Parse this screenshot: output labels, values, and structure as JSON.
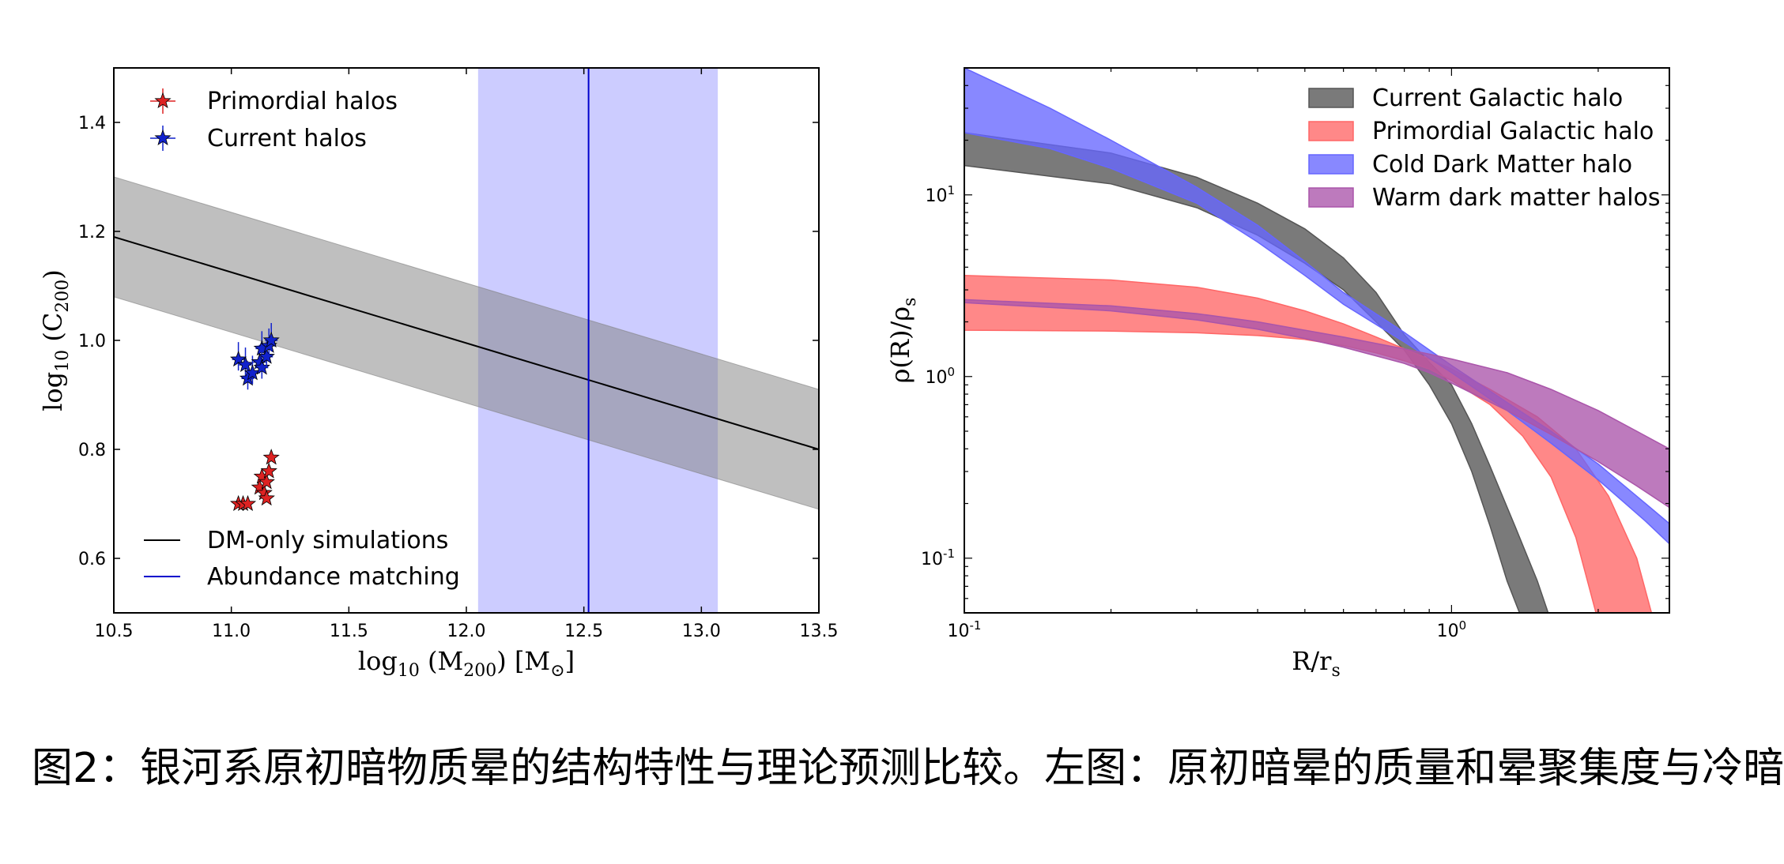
{
  "chart_data": [
    {
      "type": "scatter",
      "xlabel": "log10 (M200) [M⊙]",
      "ylabel": "log10 (C200)",
      "xlim": [
        10.5,
        13.5
      ],
      "ylim": [
        0.5,
        1.5
      ],
      "xticks": [
        "10.5",
        "11.0",
        "11.5",
        "12.0",
        "12.5",
        "13.0",
        "13.5"
      ],
      "yticks": [
        "0.6",
        "0.8",
        "1.0",
        "1.2",
        "1.4"
      ],
      "legend_top": {
        "position": "top-left",
        "entries": [
          "Primordial halos",
          "Current halos"
        ]
      },
      "legend_bottom": {
        "position": "bottom-left",
        "entries": [
          "DM-only simulations",
          "Abundance matching"
        ]
      },
      "dm_only_relation": {
        "x": [
          10.5,
          13.5
        ],
        "y": [
          1.19,
          0.8
        ],
        "band_half_width": 0.11,
        "color": "#000000",
        "band_color": "#bebebe"
      },
      "abundance_matching": {
        "x": 12.52,
        "range": [
          12.05,
          13.07
        ],
        "color": "#0000cc",
        "band_color": "#ccccff"
      },
      "series": [
        {
          "name": "Primordial halos",
          "color": "#dd2222",
          "points": [
            [
              11.03,
              0.7
            ],
            [
              11.05,
              0.7
            ],
            [
              11.07,
              0.7
            ],
            [
              11.12,
              0.73
            ],
            [
              11.13,
              0.75
            ],
            [
              11.14,
              0.72
            ],
            [
              11.15,
              0.74
            ],
            [
              11.16,
              0.76
            ],
            [
              11.15,
              0.71
            ],
            [
              11.17,
              0.785
            ]
          ]
        },
        {
          "name": "Current halos",
          "color": "#1122cc",
          "points": [
            [
              11.03,
              0.965
            ],
            [
              11.06,
              0.955
            ],
            [
              11.07,
              0.93
            ],
            [
              11.09,
              0.94
            ],
            [
              11.12,
              0.96
            ],
            [
              11.13,
              0.985
            ],
            [
              11.13,
              0.95
            ],
            [
              11.15,
              0.97
            ],
            [
              11.16,
              0.99
            ],
            [
              11.17,
              1.0
            ]
          ]
        }
      ]
    },
    {
      "type": "area",
      "xlabel": "R/rs",
      "ylabel": "ρ(R)/ρs",
      "log_x": true,
      "log_y": true,
      "xlim": [
        0.1,
        2.8
      ],
      "ylim": [
        0.05,
        50
      ],
      "xticks": [
        {
          "value": 0.1,
          "base": "10",
          "exp": "-1"
        },
        {
          "value": 1,
          "base": "10",
          "exp": "0"
        }
      ],
      "yticks": [
        {
          "value": 0.1,
          "base": "10",
          "exp": "-1"
        },
        {
          "value": 1,
          "base": "10",
          "exp": "0"
        },
        {
          "value": 10,
          "base": "10",
          "exp": "1"
        }
      ],
      "legend": {
        "position": "top-right"
      },
      "series": [
        {
          "name": "Current Galactic halo",
          "color": "#555555",
          "lower": [
            [
              0.1,
              14.5
            ],
            [
              0.2,
              11.5
            ],
            [
              0.3,
              8.5
            ],
            [
              0.4,
              6.0
            ],
            [
              0.5,
              4.2
            ],
            [
              0.6,
              3.0
            ],
            [
              0.7,
              2.0
            ],
            [
              0.8,
              1.4
            ],
            [
              0.9,
              0.9
            ],
            [
              1.0,
              0.55
            ],
            [
              1.1,
              0.3
            ],
            [
              1.2,
              0.15
            ],
            [
              1.3,
              0.075
            ],
            [
              1.4,
              0.045
            ]
          ],
          "upper": [
            [
              0.1,
              22
            ],
            [
              0.2,
              17
            ],
            [
              0.3,
              12.5
            ],
            [
              0.4,
              9.0
            ],
            [
              0.5,
              6.5
            ],
            [
              0.6,
              4.5
            ],
            [
              0.7,
              2.9
            ],
            [
              0.8,
              1.7
            ],
            [
              0.9,
              1.2
            ],
            [
              1.0,
              0.9
            ],
            [
              1.1,
              0.55
            ],
            [
              1.2,
              0.32
            ],
            [
              1.35,
              0.15
            ],
            [
              1.5,
              0.075
            ],
            [
              1.6,
              0.045
            ]
          ]
        },
        {
          "name": "Primordial Galactic halo",
          "color": "#ff6666",
          "lower": [
            [
              0.1,
              1.8
            ],
            [
              0.2,
              1.78
            ],
            [
              0.3,
              1.74
            ],
            [
              0.4,
              1.68
            ],
            [
              0.5,
              1.6
            ],
            [
              0.6,
              1.48
            ],
            [
              0.7,
              1.35
            ],
            [
              0.8,
              1.22
            ],
            [
              0.9,
              1.1
            ],
            [
              1.0,
              0.95
            ],
            [
              1.2,
              0.7
            ],
            [
              1.4,
              0.47
            ],
            [
              1.6,
              0.28
            ],
            [
              1.8,
              0.13
            ],
            [
              2.0,
              0.045
            ]
          ],
          "upper": [
            [
              0.1,
              3.6
            ],
            [
              0.2,
              3.4
            ],
            [
              0.3,
              3.1
            ],
            [
              0.4,
              2.7
            ],
            [
              0.5,
              2.3
            ],
            [
              0.6,
              1.95
            ],
            [
              0.7,
              1.65
            ],
            [
              0.8,
              1.42
            ],
            [
              0.9,
              1.25
            ],
            [
              1.0,
              1.1
            ],
            [
              1.2,
              0.85
            ],
            [
              1.5,
              0.6
            ],
            [
              1.8,
              0.4
            ],
            [
              2.1,
              0.22
            ],
            [
              2.4,
              0.1
            ],
            [
              2.6,
              0.045
            ]
          ]
        },
        {
          "name": "Cold Dark Matter halo",
          "color": "#6666ff",
          "lower": [
            [
              0.1,
              22
            ],
            [
              0.15,
              18
            ],
            [
              0.2,
              14
            ],
            [
              0.3,
              9.0
            ],
            [
              0.4,
              5.5
            ],
            [
              0.5,
              3.6
            ],
            [
              0.6,
              2.5
            ],
            [
              0.8,
              1.55
            ],
            [
              1.0,
              1.05
            ],
            [
              1.3,
              0.65
            ],
            [
              1.6,
              0.43
            ],
            [
              2.0,
              0.27
            ],
            [
              2.5,
              0.16
            ],
            [
              2.8,
              0.12
            ]
          ],
          "upper": [
            [
              0.1,
              50
            ],
            [
              0.15,
              30
            ],
            [
              0.2,
              20
            ],
            [
              0.3,
              11
            ],
            [
              0.4,
              6.8
            ],
            [
              0.5,
              4.3
            ],
            [
              0.6,
              2.9
            ],
            [
              0.8,
              1.75
            ],
            [
              1.0,
              1.15
            ],
            [
              1.3,
              0.72
            ],
            [
              1.6,
              0.5
            ],
            [
              2.0,
              0.33
            ],
            [
              2.5,
              0.2
            ],
            [
              2.8,
              0.155
            ]
          ]
        },
        {
          "name": "Warm dark matter halos",
          "color": "#aa55aa",
          "lower": [
            [
              0.1,
              2.55
            ],
            [
              0.2,
              2.3
            ],
            [
              0.3,
              2.05
            ],
            [
              0.4,
              1.82
            ],
            [
              0.5,
              1.62
            ],
            [
              0.6,
              1.45
            ],
            [
              0.7,
              1.3
            ],
            [
              0.8,
              1.18
            ],
            [
              0.9,
              1.05
            ],
            [
              1.0,
              0.92
            ],
            [
              1.3,
              0.65
            ],
            [
              1.6,
              0.48
            ],
            [
              2.0,
              0.34
            ],
            [
              2.4,
              0.25
            ],
            [
              2.8,
              0.19
            ]
          ],
          "upper": [
            [
              0.1,
              2.65
            ],
            [
              0.2,
              2.45
            ],
            [
              0.3,
              2.22
            ],
            [
              0.4,
              2.0
            ],
            [
              0.5,
              1.8
            ],
            [
              0.6,
              1.65
            ],
            [
              0.7,
              1.52
            ],
            [
              0.8,
              1.42
            ],
            [
              0.9,
              1.33
            ],
            [
              1.0,
              1.25
            ],
            [
              1.3,
              1.05
            ],
            [
              1.6,
              0.85
            ],
            [
              2.0,
              0.65
            ],
            [
              2.4,
              0.5
            ],
            [
              2.8,
              0.4
            ]
          ]
        }
      ]
    }
  ],
  "caption": "图2：银河系原初暗物质晕的结构特性与理论预测比较。左图：原初暗晕的质量和晕聚集度与冷暗"
}
